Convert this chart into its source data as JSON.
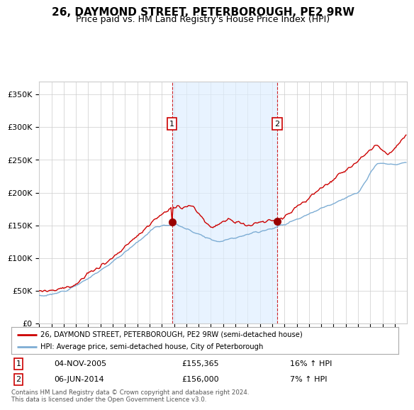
{
  "title": "26, DAYMOND STREET, PETERBOROUGH, PE2 9RW",
  "subtitle": "Price paid vs. HM Land Registry's House Price Index (HPI)",
  "legend_line1": "26, DAYMOND STREET, PETERBOROUGH, PE2 9RW (semi-detached house)",
  "legend_line2": "HPI: Average price, semi-detached house, City of Peterborough",
  "red_color": "#cc0000",
  "blue_color": "#7dadd4",
  "blue_fill_color": "#ddeeff",
  "marker_color": "#990000",
  "annotation1_date": "04-NOV-2005",
  "annotation1_price": "£155,365",
  "annotation1_hpi": "16% ↑ HPI",
  "annotation2_date": "06-JUN-2014",
  "annotation2_price": "£156,000",
  "annotation2_hpi": "7% ↑ HPI",
  "ylim": [
    0,
    370000
  ],
  "yticks": [
    0,
    50000,
    100000,
    150000,
    200000,
    250000,
    300000,
    350000
  ],
  "footnote": "Contains HM Land Registry data © Crown copyright and database right 2024.\nThis data is licensed under the Open Government Licence v3.0.",
  "background_color": "#ffffff",
  "grid_color": "#cccccc",
  "title_fontsize": 11,
  "subtitle_fontsize": 9
}
